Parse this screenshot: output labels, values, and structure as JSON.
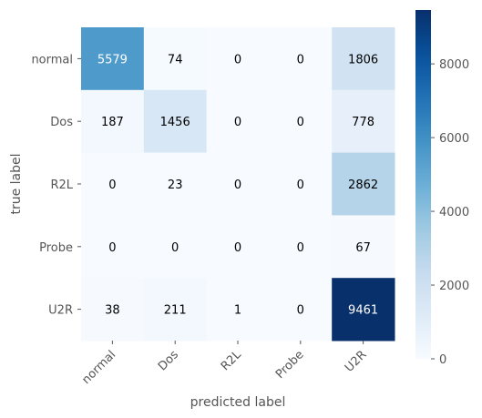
{
  "chart_data": {
    "type": "heatmap",
    "title": "",
    "xlabel": "predicted label",
    "ylabel": "true label",
    "x_categories": [
      "normal",
      "Dos",
      "R2L",
      "Probe",
      "U2R"
    ],
    "y_categories": [
      "normal",
      "Dos",
      "R2L",
      "Probe",
      "U2R"
    ],
    "values": [
      [
        5579,
        74,
        0,
        0,
        1806
      ],
      [
        187,
        1456,
        0,
        0,
        778
      ],
      [
        0,
        23,
        0,
        0,
        2862
      ],
      [
        0,
        0,
        0,
        0,
        67
      ],
      [
        38,
        211,
        1,
        0,
        9461
      ]
    ],
    "colormap": "Blues",
    "colorbar": {
      "min": 0,
      "max": 9461,
      "ticks": [
        0,
        2000,
        4000,
        6000,
        8000
      ],
      "tick_labels": [
        "0",
        "2000",
        "4000",
        "6000",
        "8000"
      ]
    },
    "grid": false,
    "x_tick_rotation_deg": 45
  }
}
